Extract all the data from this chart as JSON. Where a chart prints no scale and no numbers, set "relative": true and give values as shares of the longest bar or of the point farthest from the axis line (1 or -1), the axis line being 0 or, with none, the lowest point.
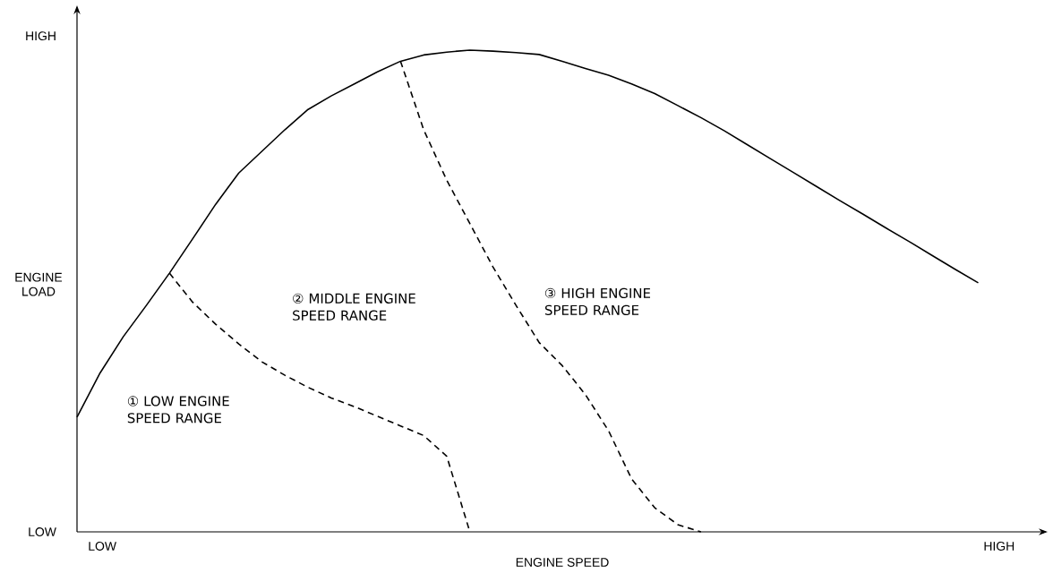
{
  "chart_data": {
    "type": "line",
    "relative": true,
    "xlabel": "ENGINE SPEED",
    "ylabel": "ENGINE LOAD",
    "marker": "none",
    "categories": [
      null,
      null,
      null,
      null,
      null,
      null,
      null,
      null,
      null,
      null,
      null,
      null,
      null,
      null,
      null,
      null,
      null,
      null,
      null,
      null,
      null,
      null,
      null,
      null,
      null,
      null,
      null,
      null,
      null,
      null,
      null,
      null,
      null,
      null,
      null,
      null,
      null,
      null,
      null,
      null
    ],
    "series": [
      {
        "color": "#000000",
        "line_style": "solid",
        "values": [
          0.238,
          0.33,
          0.405,
          0.47,
          0.537,
          0.608,
          0.68,
          0.745,
          0.79,
          0.835,
          0.877,
          0.905,
          0.93,
          0.955,
          0.977,
          0.99,
          0.996,
          1,
          0.998,
          0.995,
          0.991,
          0.977,
          0.962,
          0.948,
          0.93,
          0.91,
          0.885,
          0.86,
          0.833,
          0.804,
          0.775,
          0.746,
          0.717,
          0.688,
          0.66,
          0.631,
          0.603,
          0.574,
          0.545,
          0.517
        ]
      },
      {
        "color": "#000000",
        "line_style": "dashed",
        "values": [
          null,
          null,
          null,
          null,
          0.537,
          0.477,
          0.431,
          0.39,
          0.353,
          0.325,
          0.3,
          0.278,
          0.26,
          0.24,
          0.22,
          0.2,
          0.157,
          0,
          null,
          null,
          null,
          null,
          null,
          null,
          null,
          null,
          null,
          null,
          null,
          null,
          null,
          null,
          null,
          null,
          null,
          null,
          null,
          null,
          null,
          null
        ]
      },
      {
        "color": "#000000",
        "line_style": "dashed",
        "values": [
          null,
          null,
          null,
          null,
          null,
          null,
          null,
          null,
          null,
          null,
          null,
          null,
          null,
          null,
          0.977,
          0.835,
          0.73,
          0.64,
          0.55,
          0.47,
          0.393,
          0.345,
          0.285,
          0.21,
          0.11,
          0.05,
          0.015,
          0,
          null,
          null,
          null,
          null,
          null,
          null,
          null,
          null,
          null,
          null,
          null,
          null
        ]
      }
    ],
    "annotations": [
      "① LOW ENGINE SPEED RANGE",
      "② MIDDLE ENGINE SPEED RANGE",
      "③ HIGH ENGINE SPEED RANGE",
      "HIGH",
      "LOW",
      "LOW",
      "HIGH"
    ]
  }
}
